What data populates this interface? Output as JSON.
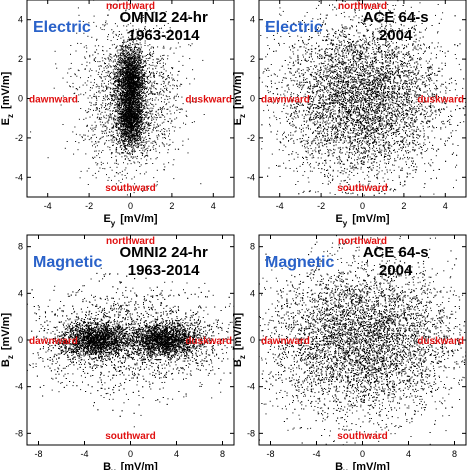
{
  "figure": {
    "panels": [
      {
        "label": "Electric",
        "title_line1": "OMNI2 24-hr",
        "title_line2": "1963-2014",
        "ylabel_main": "E",
        "ylabel_sub": "z",
        "ylabel_unit": "[mV/m]",
        "xlabel_main": "E",
        "xlabel_sub": "y",
        "xlabel_unit": "[mV/m]"
      },
      {
        "label": "Electric",
        "title_line1": "ACE 64-s",
        "title_line2": "2004",
        "ylabel_main": "E",
        "ylabel_sub": "z",
        "ylabel_unit": "[mV/m]",
        "xlabel_main": "E",
        "xlabel_sub": "y",
        "xlabel_unit": "[mV/m]"
      },
      {
        "label": "Magnetic",
        "title_line1": "OMNI2 24-hr",
        "title_line2": "1963-2014",
        "ylabel_main": "B",
        "ylabel_sub": "z",
        "ylabel_unit": "[mV/m]",
        "xlabel_main": "B",
        "xlabel_sub": "y",
        "xlabel_unit": "[mV/m]"
      },
      {
        "label": "Magnetic",
        "title_line1": "ACE 64-s",
        "title_line2": "2004",
        "ylabel_main": "B",
        "ylabel_sub": "z",
        "ylabel_unit": "[mV/m]",
        "xlabel_main": "B",
        "xlabel_sub": "y",
        "xlabel_unit": "[mV/m]"
      }
    ],
    "direction_labels": {
      "top": "northward",
      "bottom": "southward",
      "left": "dawnward",
      "right": "duskward"
    },
    "colors": {
      "label_blue": "#2a62c9",
      "direction_red": "#e01010",
      "points": "#000000"
    }
  },
  "chart_data": [
    {
      "type": "scatter",
      "panel": "Electric OMNI2 24-hr 1963-2014",
      "xlim": [
        -5,
        5
      ],
      "ylim": [
        -5,
        5
      ],
      "xticks": [
        -4,
        -2,
        0,
        2,
        4
      ],
      "yticks": [
        -4,
        -2,
        0,
        2,
        4
      ],
      "distribution": {
        "x_center": 0,
        "x_spread": 0.5,
        "y_center": 0,
        "y_spread": 1.6,
        "density_peaks_y": [
          1,
          -1
        ]
      }
    },
    {
      "type": "scatter",
      "panel": "Electric ACE 64-s 2004",
      "xlim": [
        -5,
        5
      ],
      "ylim": [
        -5,
        5
      ],
      "xticks": [
        -4,
        -2,
        0,
        2,
        4
      ],
      "yticks": [
        -4,
        -2,
        0,
        2,
        4
      ],
      "distribution": {
        "x_center": 0,
        "x_spread": 1.9,
        "y_center": 0,
        "y_spread": 2.0
      }
    },
    {
      "type": "scatter",
      "panel": "Magnetic OMNI2 24-hr 1963-2014",
      "xlim": [
        -9,
        9
      ],
      "ylim": [
        -9,
        9
      ],
      "xticks": [
        -8,
        -4,
        0,
        4,
        8
      ],
      "yticks": [
        -8,
        -4,
        0,
        4,
        8
      ],
      "distribution": {
        "x_center": 0,
        "x_spread": 3.5,
        "y_center": 0,
        "y_spread": 1.0,
        "density_peaks_x": [
          -3,
          3
        ]
      }
    },
    {
      "type": "scatter",
      "panel": "Magnetic ACE 64-s 2004",
      "xlim": [
        -9,
        9
      ],
      "ylim": [
        -9,
        9
      ],
      "xticks": [
        -8,
        -4,
        0,
        4,
        8
      ],
      "yticks": [
        -8,
        -4,
        0,
        4,
        8
      ],
      "distribution": {
        "x_center": 0,
        "x_spread": 4.0,
        "y_center": 0,
        "y_spread": 3.2
      }
    }
  ]
}
